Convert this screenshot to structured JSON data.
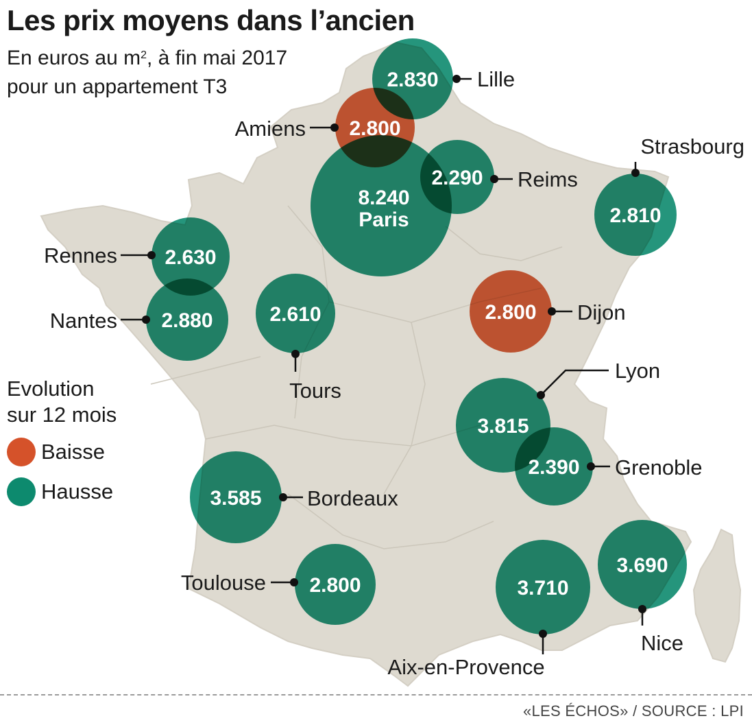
{
  "title": "Les prix moyens dans l’ancien",
  "subtitle": {
    "line1_prefix": "En euros au m",
    "line1_sup": "2",
    "line1_suffix": ", à fin mai 2017",
    "line2": "pour un appartement T3"
  },
  "colors": {
    "baisse": "#d5522a",
    "hausse": "#0d8a6e",
    "land": "#dedad0",
    "border": "#c9c4b8"
  },
  "legend": {
    "title_line1": "Evolution",
    "title_line2": "sur 12 mois",
    "items": [
      {
        "label": "Baisse",
        "trend": "baisse"
      },
      {
        "label": "Hausse",
        "trend": "hausse"
      }
    ]
  },
  "cities": [
    {
      "id": "lille",
      "name": "Lille",
      "price": "2.830",
      "trend": "hausse"
    },
    {
      "id": "amiens",
      "name": "Amiens",
      "price": "2.800",
      "trend": "baisse"
    },
    {
      "id": "paris",
      "name": "Paris",
      "price": "8.240",
      "trend": "hausse"
    },
    {
      "id": "reims",
      "name": "Reims",
      "price": "2.290",
      "trend": "hausse"
    },
    {
      "id": "strasbourg",
      "name": "Strasbourg",
      "price": "2.810",
      "trend": "hausse"
    },
    {
      "id": "rennes",
      "name": "Rennes",
      "price": "2.630",
      "trend": "hausse"
    },
    {
      "id": "nantes",
      "name": "Nantes",
      "price": "2.880",
      "trend": "hausse"
    },
    {
      "id": "tours",
      "name": "Tours",
      "price": "2.610",
      "trend": "hausse"
    },
    {
      "id": "dijon",
      "name": "Dijon",
      "price": "2.800",
      "trend": "baisse"
    },
    {
      "id": "lyon",
      "name": "Lyon",
      "price": "3.815",
      "trend": "hausse"
    },
    {
      "id": "grenoble",
      "name": "Grenoble",
      "price": "2.390",
      "trend": "hausse"
    },
    {
      "id": "bordeaux",
      "name": "Bordeaux",
      "price": "3.585",
      "trend": "hausse"
    },
    {
      "id": "toulouse",
      "name": "Toulouse",
      "price": "2.800",
      "trend": "hausse"
    },
    {
      "id": "aix",
      "name": "Aix-en-Provence",
      "price": "3.710",
      "trend": "hausse"
    },
    {
      "id": "nice",
      "name": "Nice",
      "price": "3.690",
      "trend": "hausse"
    }
  ],
  "source": "«LES ÉCHOS» / SOURCE : LPI"
}
